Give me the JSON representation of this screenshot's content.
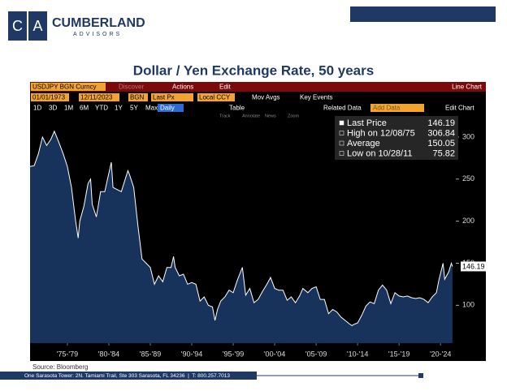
{
  "logo": {
    "c": "C",
    "a": "A",
    "name": "CUMBERLAND",
    "sub": "ADVISORS"
  },
  "toolbar": {
    "ticker": "USDJPY BGN Curncy",
    "discover": "Discover",
    "actions": "Actions",
    "edit": "Edit",
    "mode": "Line Chart",
    "start": "01/01/1973",
    "end": "12/11/2023",
    "source": "BGN",
    "field": "Last Px",
    "ccy": "Local CCY",
    "mov": "Mov Avgs",
    "events": "Key Events",
    "ranges": [
      "1D",
      "3D",
      "1M",
      "6M",
      "YTD",
      "1Y",
      "5Y",
      "Max"
    ],
    "freq": "Daily",
    "table": "Table",
    "related": "Related Data",
    "add": "Add Data",
    "editchart": "Edit Chart",
    "tools": [
      "Track",
      "Annotate",
      "News",
      "Zoom"
    ]
  },
  "chart_data": {
    "type": "area",
    "title": "Dollar / Yen Exchange Rate, 50 years",
    "x": [
      1973,
      1973.5,
      1974,
      1974.5,
      1975,
      1975.5,
      1975.93,
      1976.5,
      1977,
      1977.5,
      1978,
      1978.5,
      1978.8,
      1979,
      1979.5,
      1980,
      1980.3,
      1980.5,
      1981,
      1981.5,
      1982,
      1982.8,
      1983,
      1984,
      1984.8,
      1985,
      1985.5,
      1986,
      1986.5,
      1987,
      1987.5,
      1988,
      1988.5,
      1989,
      1989.5,
      1990,
      1990.3,
      1990.5,
      1991,
      1991.5,
      1992,
      1992.5,
      1993,
      1993.5,
      1994,
      1994.5,
      1995,
      1995.3,
      1995.6,
      1996,
      1996.5,
      1997,
      1997.5,
      1998,
      1998.6,
      1999,
      1999.5,
      2000,
      2000.5,
      2001,
      2001.5,
      2002,
      2002.5,
      2003,
      2003.5,
      2004,
      2004.5,
      2005,
      2005.5,
      2005.9,
      2006.5,
      2007,
      2007.5,
      2008,
      2008.5,
      2009,
      2009.5,
      2010,
      2010.5,
      2011,
      2011.5,
      2011.82,
      2012,
      2012.5,
      2013,
      2013.5,
      2014,
      2014.5,
      2015,
      2015.5,
      2016,
      2016.5,
      2017,
      2017.5,
      2018,
      2018.5,
      2019,
      2019.5,
      2020,
      2020.5,
      2021,
      2021.5,
      2022,
      2022.3,
      2022.8,
      2023,
      2023.5,
      2023.8,
      2023.94
    ],
    "values": [
      265,
      266,
      280,
      300,
      290,
      297,
      306.84,
      293,
      280,
      265,
      240,
      200,
      180,
      200,
      218,
      245,
      250,
      220,
      205,
      235,
      235,
      270,
      240,
      235,
      260,
      255,
      240,
      195,
      155,
      150,
      145,
      125,
      135,
      128,
      145,
      145,
      158,
      145,
      135,
      137,
      125,
      127,
      125,
      105,
      110,
      100,
      98,
      82,
      95,
      105,
      110,
      118,
      115,
      130,
      145,
      112,
      120,
      103,
      107,
      116,
      124,
      133,
      120,
      118,
      118,
      106,
      110,
      103,
      111,
      120,
      115,
      120,
      122,
      107,
      107,
      90,
      95,
      92,
      86,
      82,
      78,
      75.82,
      77,
      79,
      88,
      99,
      104,
      102,
      118,
      124,
      118,
      102,
      115,
      111,
      110,
      111,
      109,
      108,
      109,
      107,
      103,
      110,
      115,
      130,
      150,
      131,
      140,
      150,
      146.19
    ],
    "color": "#ffffff",
    "area_color": "#17335c",
    "xlim": [
      1973,
      2023.95
    ],
    "xticks": [
      {
        "value": 1977.5,
        "label": "'75-'79"
      },
      {
        "value": 1982.5,
        "label": "'80-'84"
      },
      {
        "value": 1987.5,
        "label": "'85-'89"
      },
      {
        "value": 1992.5,
        "label": "'90-'94"
      },
      {
        "value": 1997.5,
        "label": "'95-'99"
      },
      {
        "value": 2002.5,
        "label": "'00-'04"
      },
      {
        "value": 2007.5,
        "label": "'05-'09"
      },
      {
        "value": 2012.5,
        "label": "'10-'14"
      },
      {
        "value": 2017.5,
        "label": "'15-'19"
      },
      {
        "value": 2022.5,
        "label": "'20-'24"
      }
    ],
    "ylim": [
      55,
      325
    ],
    "yticks": [
      100,
      150,
      200,
      250,
      300
    ],
    "grid": false,
    "stats": [
      {
        "label": "Last Price",
        "value": 146.19
      },
      {
        "label": "High on 12/08/75",
        "value": 306.84
      },
      {
        "label": "Average",
        "value": 150.05
      },
      {
        "label": "Low on 10/28/11",
        "value": 75.82
      }
    ]
  },
  "footer": {
    "source": "Source: Bloomberg",
    "address": "One Sarasota Tower: 2N. Tamiami Trail, Ste 303 Sarasota, FL 34236  |  T: 800.257.7013"
  }
}
